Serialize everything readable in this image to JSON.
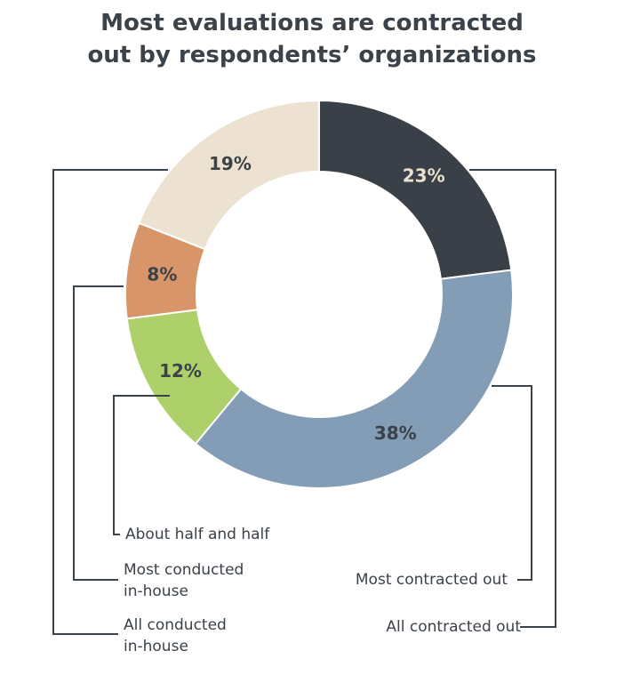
{
  "title_line1": "Most evaluations are contracted",
  "title_line2": "out by respondents’ organizations",
  "chart_data": {
    "type": "pie",
    "donut": true,
    "title": "Most evaluations are contracted out by respondents’ organizations",
    "slices": [
      {
        "name": "All contracted out",
        "value": 23,
        "label": "23%",
        "color": "#394047",
        "label_color": "#e8dfcf",
        "legend_lines": [
          "All contracted out"
        ]
      },
      {
        "name": "Most contracted out",
        "value": 38,
        "label": "38%",
        "color": "#829db5",
        "label_color": "#3b4249",
        "legend_lines": [
          "Most contracted out"
        ]
      },
      {
        "name": "About half and half",
        "value": 12,
        "label": "12%",
        "color": "#add06a",
        "label_color": "#3b4249",
        "legend_lines": [
          "About half and half"
        ]
      },
      {
        "name": "Most conducted in-house",
        "value": 8,
        "label": "8%",
        "color": "#d9956a",
        "label_color": "#3b4249",
        "legend_lines": [
          "Most conducted",
          "in-house"
        ]
      },
      {
        "name": "All conducted in-house",
        "value": 19,
        "label": "19%",
        "color": "#ede2d2",
        "label_color": "#3b4249",
        "legend_lines": [
          "All conducted",
          "in-house"
        ]
      }
    ]
  }
}
